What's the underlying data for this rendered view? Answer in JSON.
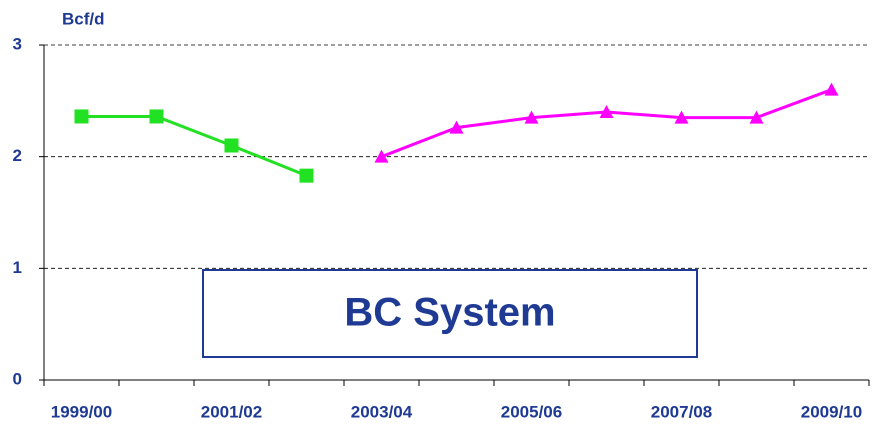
{
  "chart_data": {
    "type": "line",
    "y_axis_label": "Bcf/d",
    "annotation": "BC System",
    "categories": [
      "1999/00",
      null,
      "2001/02",
      null,
      "2003/04",
      null,
      "2005/06",
      null,
      "2007/08",
      null,
      "2009/10"
    ],
    "series": [
      {
        "color": "#22e022",
        "marker": "square",
        "values": [
          2.36,
          2.36,
          2.1,
          1.83,
          null,
          null,
          null,
          null,
          null,
          null,
          null
        ]
      },
      {
        "color": "#ff00ff",
        "marker": "triangle",
        "values": [
          null,
          null,
          null,
          null,
          2.0,
          2.26,
          2.35,
          2.4,
          2.35,
          2.35,
          2.6
        ]
      }
    ],
    "ylim": [
      0,
      3
    ],
    "yticks": [
      0,
      1,
      2,
      3
    ],
    "grid": true
  }
}
